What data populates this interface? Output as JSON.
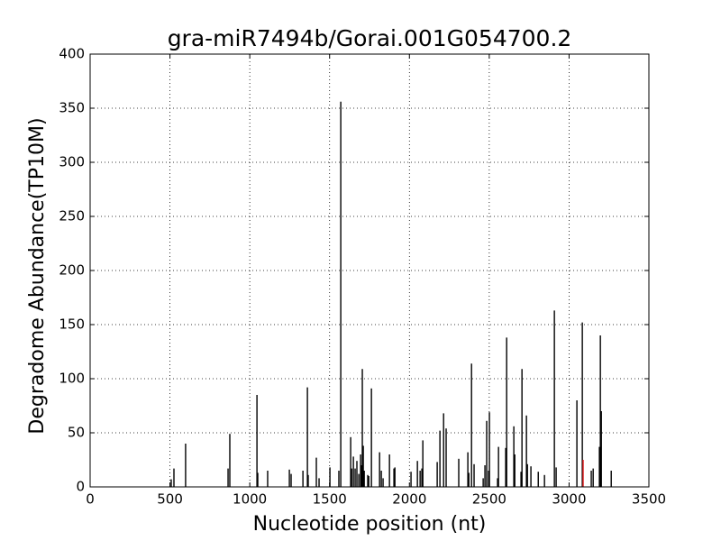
{
  "chart_data": {
    "type": "spike",
    "title": "gra-miR7494b/Gorai.001G054700.2",
    "x_label": "Nucleotide position (nt)",
    "y_label": "Degradome Abundance(TP10M)",
    "xlim": [
      0,
      3500
    ],
    "xticks": [
      0,
      500,
      1000,
      1500,
      2000,
      2500,
      3000,
      3500
    ],
    "ylim": [
      0,
      400
    ],
    "yticks": [
      0,
      50,
      100,
      150,
      200,
      250,
      300,
      350,
      400
    ],
    "grid": true,
    "series": [
      {
        "color": "#000000",
        "x": [
          508,
          525,
          598,
          864,
          875,
          1045,
          1050,
          1112,
          1248,
          1259,
          1333,
          1361,
          1366,
          1417,
          1434,
          1502,
          1558,
          1570,
          1632,
          1638,
          1649,
          1660,
          1671,
          1683,
          1694,
          1700,
          1705,
          1711,
          1717,
          1739,
          1745,
          1762,
          1813,
          1824,
          1835,
          1875,
          1903,
          1909,
          2010,
          2050,
          2067,
          2078,
          2084,
          2174,
          2191,
          2214,
          2230,
          2309,
          2366,
          2372,
          2389,
          2405,
          2462,
          2473,
          2484,
          2496,
          2501,
          2552,
          2558,
          2603,
          2609,
          2654,
          2660,
          2699,
          2705,
          2733,
          2739,
          2761,
          2807,
          2846,
          2908,
          2919,
          3049,
          3083,
          3139,
          3151,
          3190,
          3196,
          3202,
          3264
        ],
        "values": [
          7,
          17,
          40,
          17,
          49,
          85,
          13,
          15,
          16,
          12,
          15,
          92,
          11,
          27,
          8,
          18,
          15,
          356,
          46,
          17,
          28,
          17,
          24,
          12,
          30,
          20,
          109,
          38,
          15,
          11,
          10,
          91,
          32,
          15,
          8,
          30,
          17,
          18,
          14,
          24,
          15,
          17,
          43,
          23,
          52,
          68,
          54,
          26,
          32,
          13,
          114,
          21,
          8,
          20,
          61,
          15,
          69,
          8,
          37,
          36,
          138,
          56,
          30,
          14,
          109,
          66,
          21,
          19,
          14,
          11,
          163,
          18,
          80,
          152,
          15,
          17,
          37,
          140,
          70,
          15
        ]
      },
      {
        "color": "#e31a1c",
        "x": [
          3088
        ],
        "values": [
          25
        ]
      }
    ]
  }
}
